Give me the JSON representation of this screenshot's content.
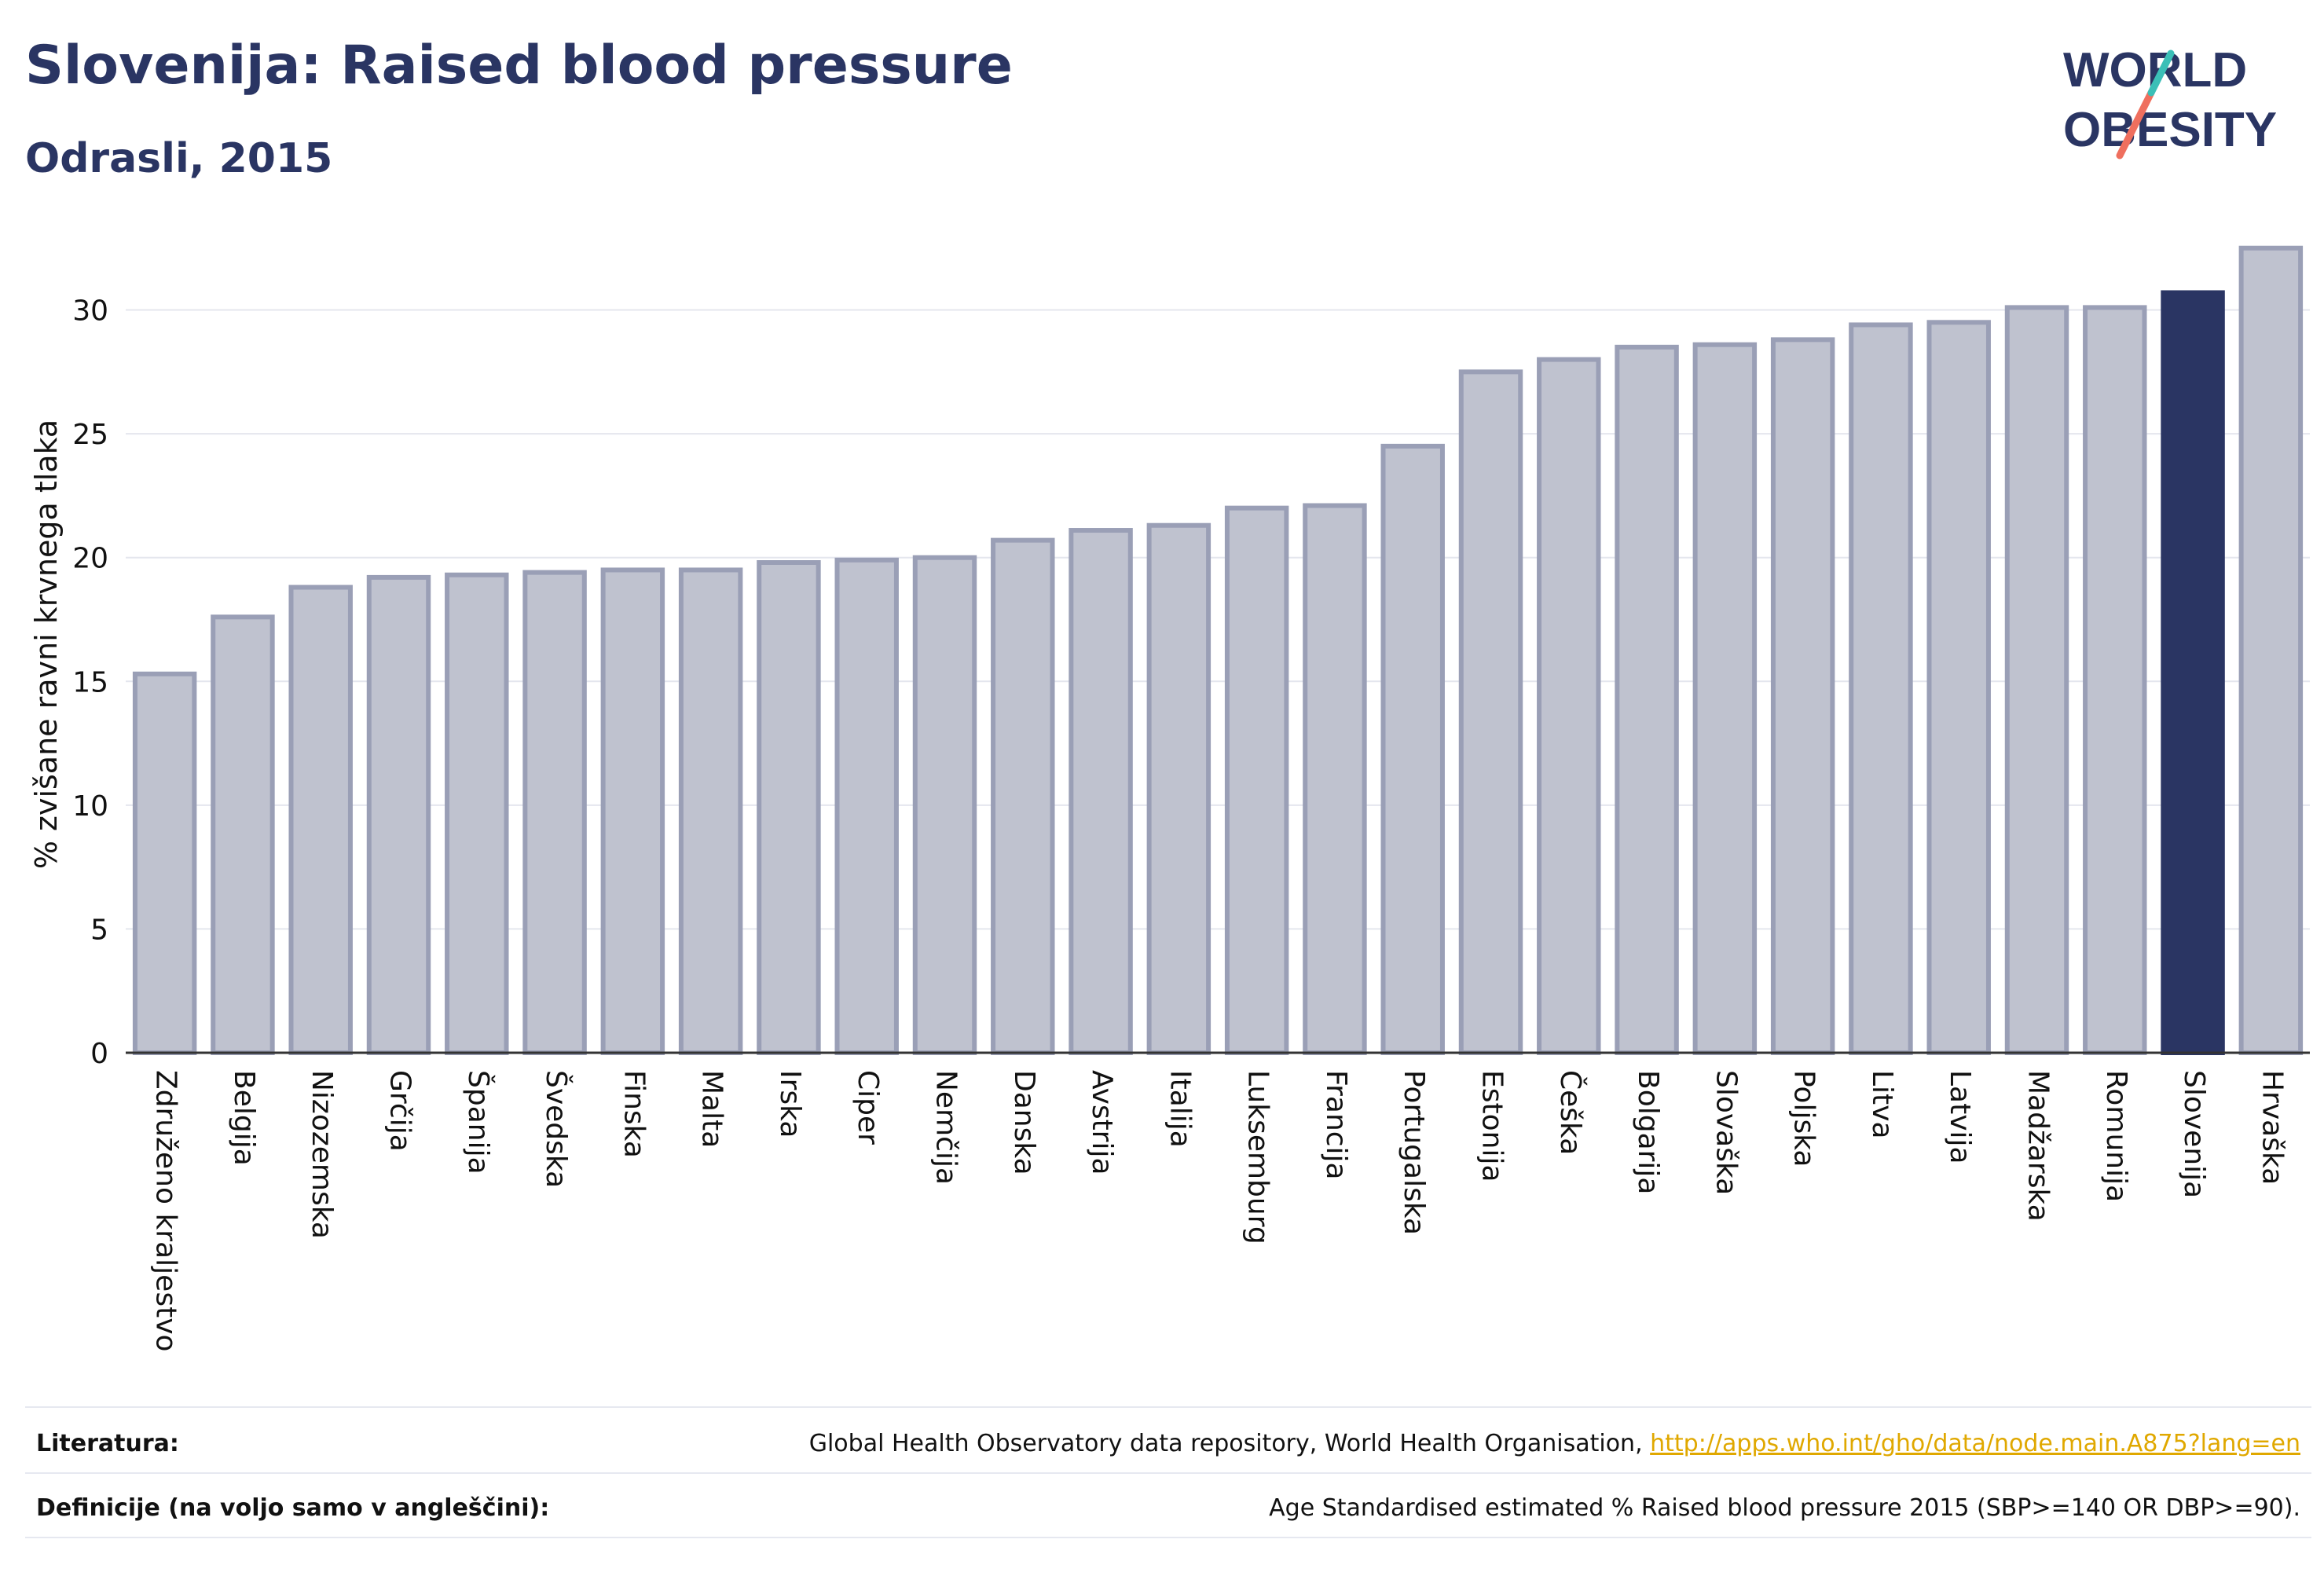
{
  "header": {
    "title": "Slovenija: Raised blood pressure",
    "subtitle": "Odrasli, 2015"
  },
  "logo": {
    "line1": "WORLD",
    "line2": "OBESITY",
    "accent_teal": "#3bbfb7",
    "accent_coral": "#ef6f5e"
  },
  "colors": {
    "bar": "#bfc2cf",
    "bar_stroke": "#9a9fb6",
    "highlight": "#2a3563",
    "grid": "#e4e6ee",
    "text": "#111111"
  },
  "chart_data": {
    "type": "bar",
    "ylabel": "% zvišane ravni krvnega tlaka",
    "ylim": [
      0,
      33
    ],
    "yticks": [
      0,
      5,
      10,
      15,
      20,
      25,
      30
    ],
    "grid": true,
    "highlight_category": "Slovenija",
    "categories": [
      "Združeno kraljestvo",
      "Belgija",
      "Nizozemska",
      "Grčija",
      "Španija",
      "Švedska",
      "Finska",
      "Malta",
      "Irska",
      "Ciper",
      "Nemčija",
      "Danska",
      "Avstrija",
      "Italija",
      "Luksemburg",
      "Francija",
      "Portugalska",
      "Estonija",
      "Češka",
      "Bolgarija",
      "Slovaška",
      "Poljska",
      "Litva",
      "Latvija",
      "Madžarska",
      "Romunija",
      "Slovenija",
      "Hrvaška"
    ],
    "values": [
      15.3,
      17.6,
      18.8,
      19.2,
      19.3,
      19.4,
      19.5,
      19.5,
      19.8,
      19.9,
      20.0,
      20.7,
      21.1,
      21.3,
      22.0,
      22.1,
      24.5,
      27.5,
      28.0,
      28.5,
      28.6,
      28.8,
      29.4,
      29.5,
      30.1,
      30.1,
      30.7,
      32.5
    ]
  },
  "footer": {
    "sources_label": "Literatura:",
    "sources_text": "Global Health Observatory data repository, World Health Organisation, ",
    "sources_link": "http://apps.who.int/gho/data/node.main.A875?lang=en",
    "definitions_label": "Definicije (na voljo samo v angleščini):",
    "definitions_text": "Age Standardised estimated % Raised blood pressure 2015 (SBP>=140 OR DBP>=90)."
  }
}
